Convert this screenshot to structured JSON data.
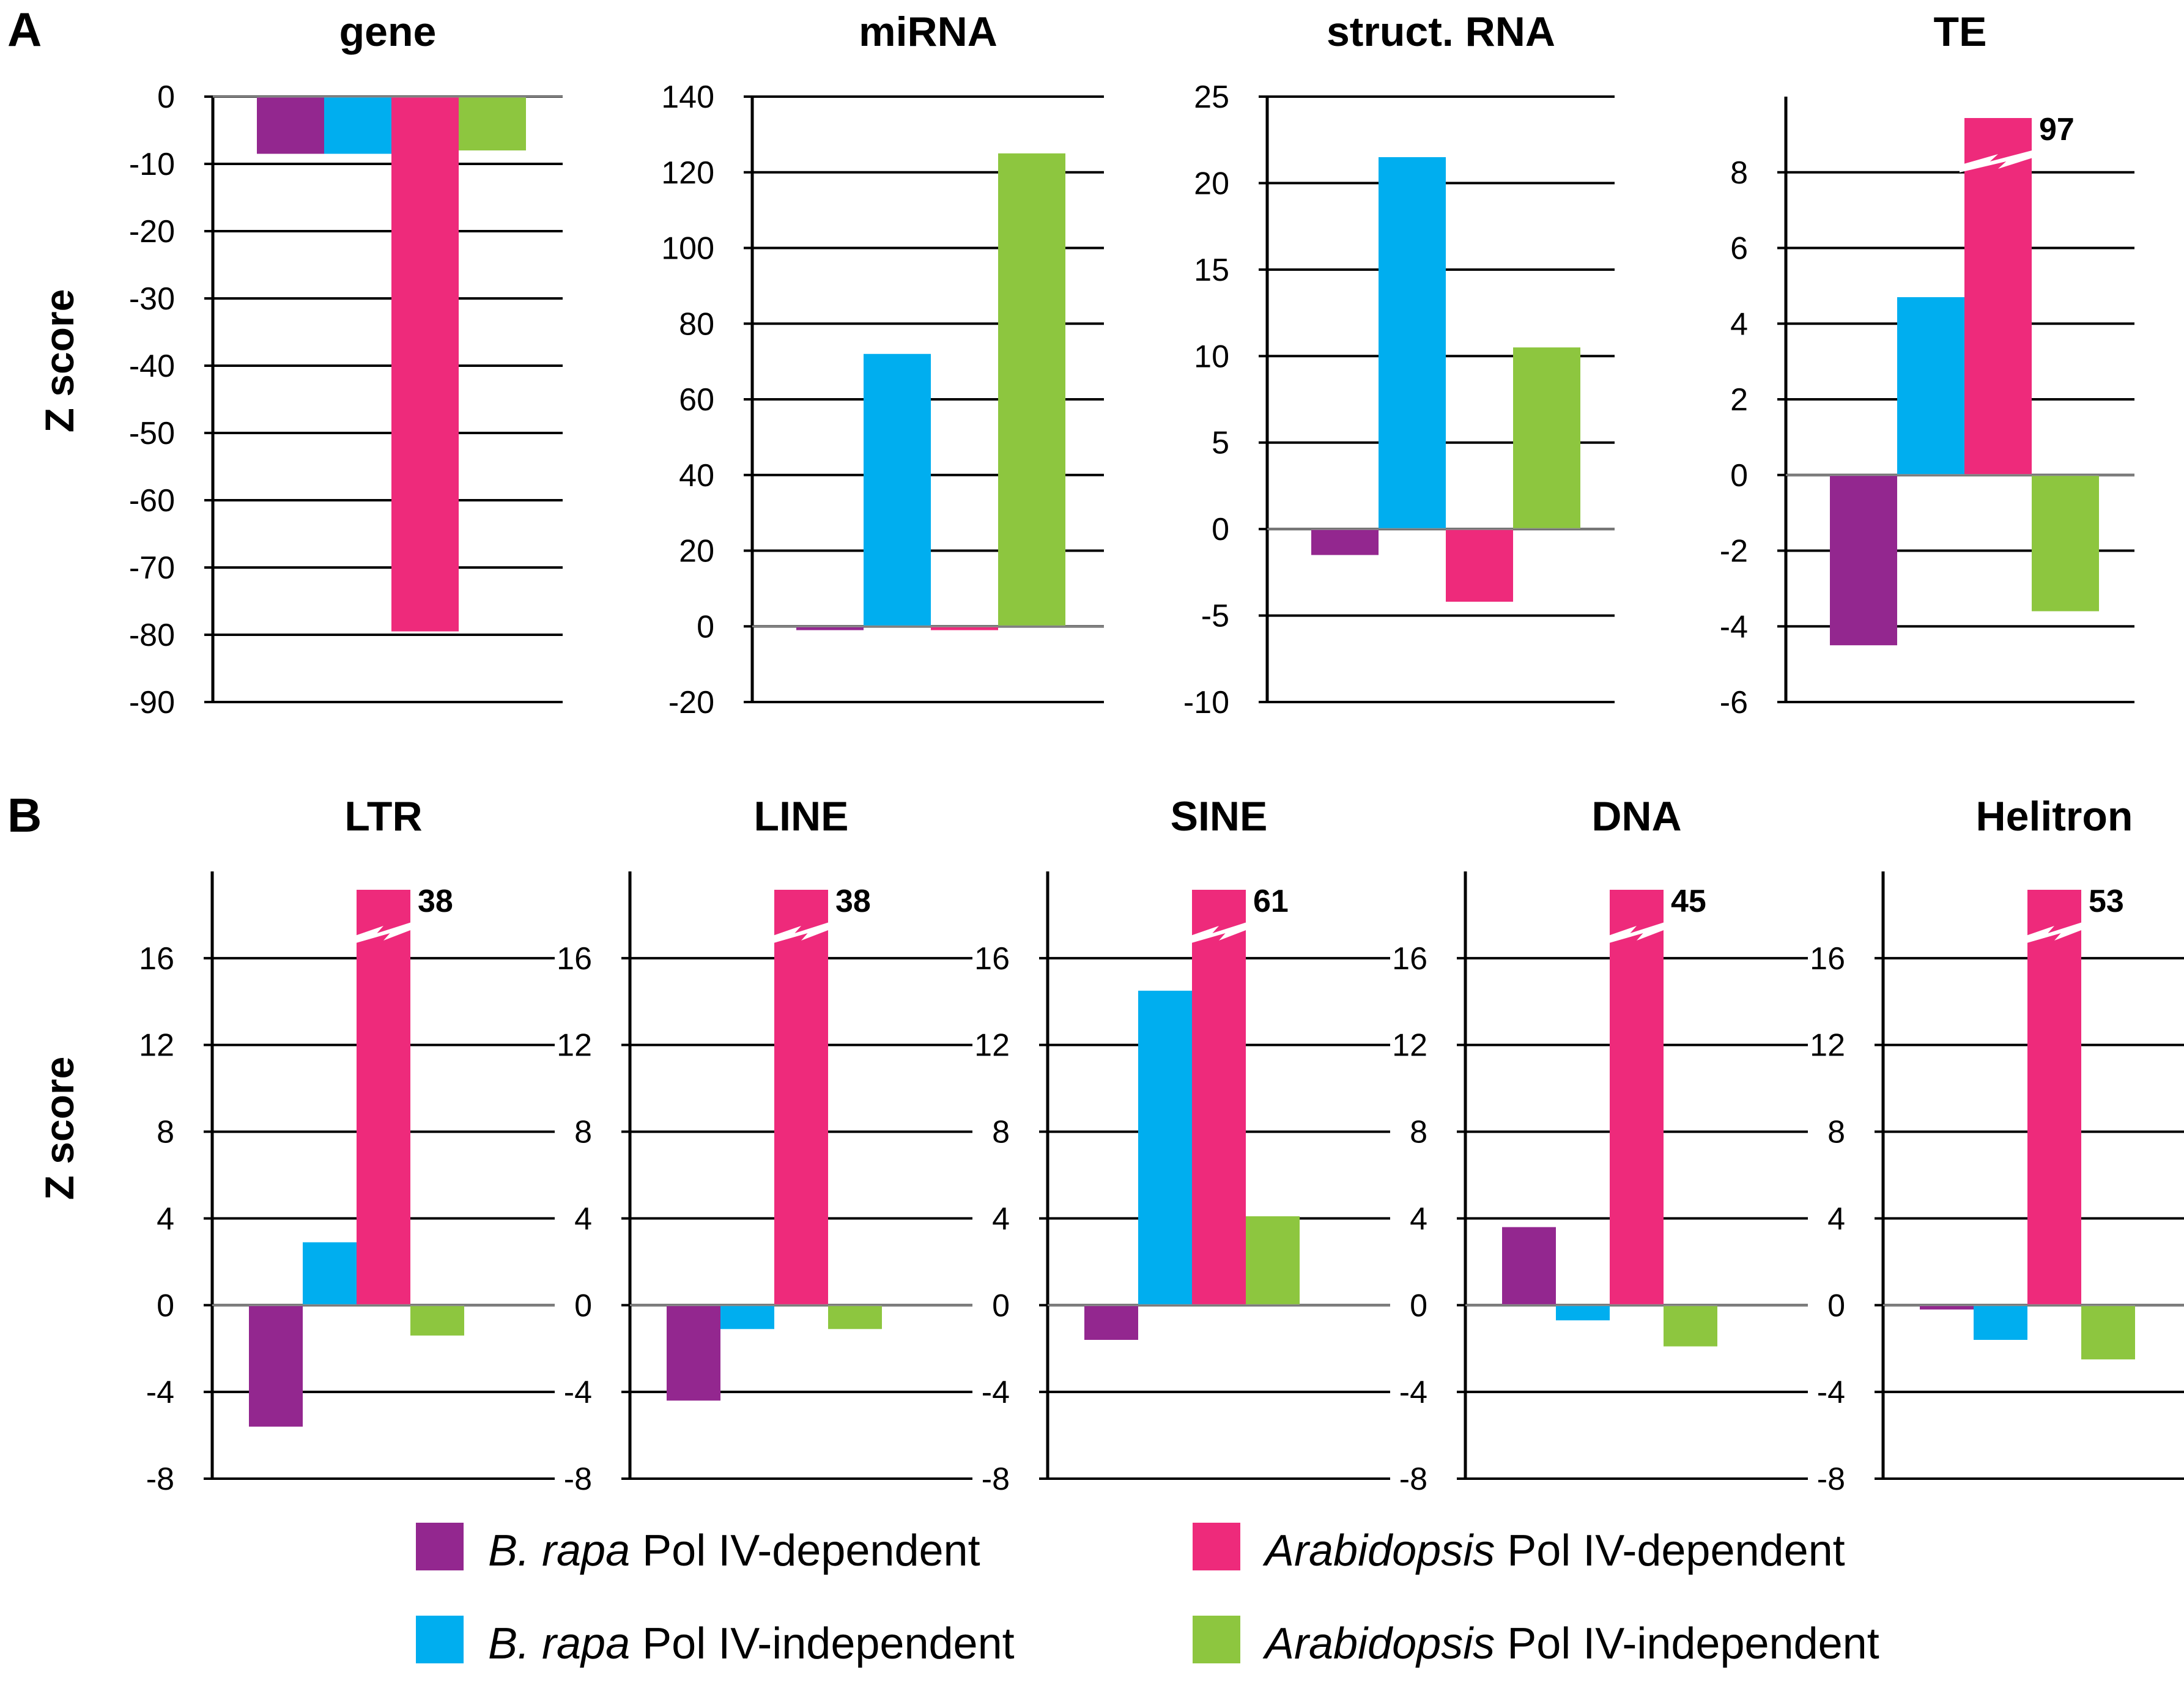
{
  "panels": [
    {
      "letter": "A",
      "ylabel": "Z score"
    },
    {
      "letter": "B",
      "ylabel": "Z score"
    }
  ],
  "legend": [
    {
      "species": "B. rapa",
      "label": " Pol IV-dependent",
      "color": "#93278f"
    },
    {
      "species": "Arabidopsis",
      "label": " Pol IV-dependent",
      "color": "#ee2a7b"
    },
    {
      "species": "B. rapa",
      "label": " Pol IV-independent",
      "color": "#00aeef"
    },
    {
      "species": "Arabidopsis",
      "label": " Pol IV-independent",
      "color": "#8dc63f"
    }
  ],
  "chart_data": [
    {
      "type": "bar",
      "panel": "A",
      "title": "gene",
      "ylim": [
        -90,
        0
      ],
      "yticks": [
        0,
        -10,
        -20,
        -30,
        -40,
        -50,
        -60,
        -70,
        -80,
        -90
      ],
      "grid": true,
      "series": [
        {
          "name": "B. rapa Pol IV-dependent",
          "color": "#93278f",
          "value": -8.5
        },
        {
          "name": "B. rapa Pol IV-independent",
          "color": "#00aeef",
          "value": -8.5
        },
        {
          "name": "Arabidopsis Pol IV-dependent",
          "color": "#ee2a7b",
          "value": -79.5
        },
        {
          "name": "Arabidopsis Pol IV-independent",
          "color": "#8dc63f",
          "value": -8
        }
      ]
    },
    {
      "type": "bar",
      "panel": "A",
      "title": "miRNA",
      "ylim": [
        -20,
        140
      ],
      "yticks": [
        140,
        120,
        100,
        80,
        60,
        40,
        20,
        0,
        -20
      ],
      "grid": true,
      "series": [
        {
          "name": "B. rapa Pol IV-dependent",
          "color": "#93278f",
          "value": -1
        },
        {
          "name": "B. rapa Pol IV-independent",
          "color": "#00aeef",
          "value": 72
        },
        {
          "name": "Arabidopsis Pol IV-dependent",
          "color": "#ee2a7b",
          "value": -1
        },
        {
          "name": "Arabidopsis Pol IV-independent",
          "color": "#8dc63f",
          "value": 125
        }
      ]
    },
    {
      "type": "bar",
      "panel": "A",
      "title": "struct. RNA",
      "ylim": [
        -10,
        25
      ],
      "yticks": [
        25,
        20,
        15,
        10,
        5,
        0,
        -5,
        -10
      ],
      "grid": true,
      "series": [
        {
          "name": "B. rapa Pol IV-dependent",
          "color": "#93278f",
          "value": -1.5
        },
        {
          "name": "B. rapa Pol IV-independent",
          "color": "#00aeef",
          "value": 21.5
        },
        {
          "name": "Arabidopsis Pol IV-dependent",
          "color": "#ee2a7b",
          "value": -4.2
        },
        {
          "name": "Arabidopsis Pol IV-independent",
          "color": "#8dc63f",
          "value": 10.5
        }
      ]
    },
    {
      "type": "bar",
      "panel": "A",
      "title": "TE",
      "ylim": [
        -6,
        10
      ],
      "yticks": [
        8,
        6,
        4,
        2,
        0,
        -2,
        -4,
        -6
      ],
      "grid": true,
      "series": [
        {
          "name": "B. rapa Pol IV-dependent",
          "color": "#93278f",
          "value": -4.5
        },
        {
          "name": "B. rapa Pol IV-independent",
          "color": "#00aeef",
          "value": 4.7
        },
        {
          "name": "Arabidopsis Pol IV-dependent",
          "color": "#ee2a7b",
          "value": 97,
          "label": "97"
        },
        {
          "name": "Arabidopsis Pol IV-independent",
          "color": "#8dc63f",
          "value": -3.6
        }
      ]
    },
    {
      "type": "bar",
      "panel": "B",
      "title": "LTR",
      "ylim": [
        -8,
        20
      ],
      "yticks": [
        16,
        12,
        8,
        4,
        0,
        -4,
        -8
      ],
      "grid": true,
      "series": [
        {
          "name": "B. rapa Pol IV-dependent",
          "color": "#93278f",
          "value": -5.6
        },
        {
          "name": "B. rapa Pol IV-independent",
          "color": "#00aeef",
          "value": 2.9
        },
        {
          "name": "Arabidopsis Pol IV-dependent",
          "color": "#ee2a7b",
          "value": 38,
          "label": "38"
        },
        {
          "name": "Arabidopsis Pol IV-independent",
          "color": "#8dc63f",
          "value": -1.4
        }
      ]
    },
    {
      "type": "bar",
      "panel": "B",
      "title": "LINE",
      "ylim": [
        -8,
        20
      ],
      "yticks": [
        16,
        12,
        8,
        4,
        0,
        -4,
        -8
      ],
      "grid": true,
      "series": [
        {
          "name": "B. rapa Pol IV-dependent",
          "color": "#93278f",
          "value": -4.4
        },
        {
          "name": "B. rapa Pol IV-independent",
          "color": "#00aeef",
          "value": -1.1
        },
        {
          "name": "Arabidopsis Pol IV-dependent",
          "color": "#ee2a7b",
          "value": 38,
          "label": "38"
        },
        {
          "name": "Arabidopsis Pol IV-independent",
          "color": "#8dc63f",
          "value": -1.1
        }
      ]
    },
    {
      "type": "bar",
      "panel": "B",
      "title": "SINE",
      "ylim": [
        -8,
        20
      ],
      "yticks": [
        16,
        12,
        8,
        4,
        0,
        -4,
        -8
      ],
      "grid": true,
      "series": [
        {
          "name": "B. rapa Pol IV-dependent",
          "color": "#93278f",
          "value": -1.6
        },
        {
          "name": "B. rapa Pol IV-independent",
          "color": "#00aeef",
          "value": 14.5
        },
        {
          "name": "Arabidopsis Pol IV-dependent",
          "color": "#ee2a7b",
          "value": 61,
          "label": "61"
        },
        {
          "name": "Arabidopsis Pol IV-independent",
          "color": "#8dc63f",
          "value": 4.1
        }
      ]
    },
    {
      "type": "bar",
      "panel": "B",
      "title": "DNA",
      "ylim": [
        -8,
        20
      ],
      "yticks": [
        16,
        12,
        8,
        4,
        0,
        -4,
        -8
      ],
      "grid": true,
      "series": [
        {
          "name": "B. rapa Pol IV-dependent",
          "color": "#93278f",
          "value": 3.6
        },
        {
          "name": "B. rapa Pol IV-independent",
          "color": "#00aeef",
          "value": -0.7
        },
        {
          "name": "Arabidopsis Pol IV-dependent",
          "color": "#ee2a7b",
          "value": 45,
          "label": "45"
        },
        {
          "name": "Arabidopsis Pol IV-independent",
          "color": "#8dc63f",
          "value": -1.9
        }
      ]
    },
    {
      "type": "bar",
      "panel": "B",
      "title": "Helitron",
      "ylim": [
        -8,
        20
      ],
      "yticks": [
        16,
        12,
        8,
        4,
        0,
        -4,
        -8
      ],
      "grid": true,
      "series": [
        {
          "name": "B. rapa Pol IV-dependent",
          "color": "#93278f",
          "value": -0.2
        },
        {
          "name": "B. rapa Pol IV-independent",
          "color": "#00aeef",
          "value": -1.6
        },
        {
          "name": "Arabidopsis Pol IV-dependent",
          "color": "#ee2a7b",
          "value": 53,
          "label": "53"
        },
        {
          "name": "Arabidopsis Pol IV-independent",
          "color": "#8dc63f",
          "value": -2.5
        }
      ]
    }
  ]
}
